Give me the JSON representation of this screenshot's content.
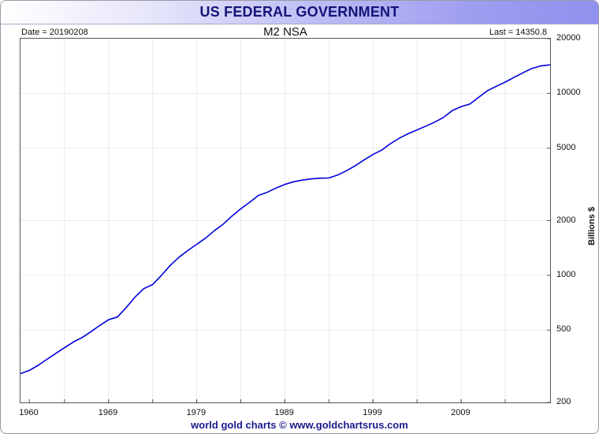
{
  "banner": {
    "title": "US FEDERAL GOVERNMENT"
  },
  "meta": {
    "date": "Date = 20190208",
    "last": "Last = 14350.8"
  },
  "footer": {
    "text": "world gold charts © www.goldchartsrus.com"
  },
  "colors": {
    "line": "#0000dd",
    "grid": "#e6eaf2",
    "banner_text": "#141478"
  },
  "chart_data": {
    "type": "line",
    "title": "M2 NSA",
    "ylabel": "Billions $",
    "yscale": "log",
    "ylim": [
      200,
      20000
    ],
    "xlim": [
      1959.0,
      2019.1
    ],
    "yticks": [
      200,
      500,
      1000,
      2000,
      5000,
      10000,
      20000
    ],
    "xticks": [
      1960,
      1969,
      1979,
      1989,
      1999,
      2009
    ],
    "grid": true,
    "y_axis_position": "right",
    "series": [
      {
        "name": "M2 NSA",
        "x": [
          1959.0,
          1960.0,
          1961.0,
          1962.0,
          1963.0,
          1964.0,
          1965.0,
          1966.0,
          1967.0,
          1968.0,
          1969.0,
          1970.0,
          1971.0,
          1972.0,
          1973.0,
          1974.0,
          1975.0,
          1976.0,
          1977.0,
          1978.0,
          1979.0,
          1980.0,
          1981.0,
          1982.0,
          1983.0,
          1984.0,
          1985.0,
          1986.0,
          1987.0,
          1988.0,
          1989.0,
          1990.0,
          1991.0,
          1992.0,
          1993.0,
          1994.0,
          1995.0,
          1996.0,
          1997.0,
          1998.0,
          1999.0,
          2000.0,
          2001.0,
          2002.0,
          2003.0,
          2004.0,
          2005.0,
          2006.0,
          2007.0,
          2008.0,
          2009.0,
          2010.0,
          2011.0,
          2012.0,
          2013.0,
          2014.0,
          2015.0,
          2016.0,
          2017.0,
          2018.0,
          2019.1
        ],
        "values": [
          288,
          300,
          320,
          345,
          372,
          400,
          430,
          455,
          490,
          530,
          570,
          590,
          665,
          760,
          845,
          890,
          1000,
          1135,
          1260,
          1370,
          1480,
          1600,
          1760,
          1910,
          2120,
          2320,
          2520,
          2750,
          2860,
          3020,
          3160,
          3270,
          3340,
          3390,
          3420,
          3430,
          3560,
          3760,
          4010,
          4310,
          4620,
          4880,
          5300,
          5680,
          6010,
          6300,
          6610,
          6950,
          7380,
          8050,
          8460,
          8750,
          9520,
          10350,
          10950,
          11550,
          12250,
          12980,
          13690,
          14150,
          14350.8
        ]
      }
    ]
  }
}
